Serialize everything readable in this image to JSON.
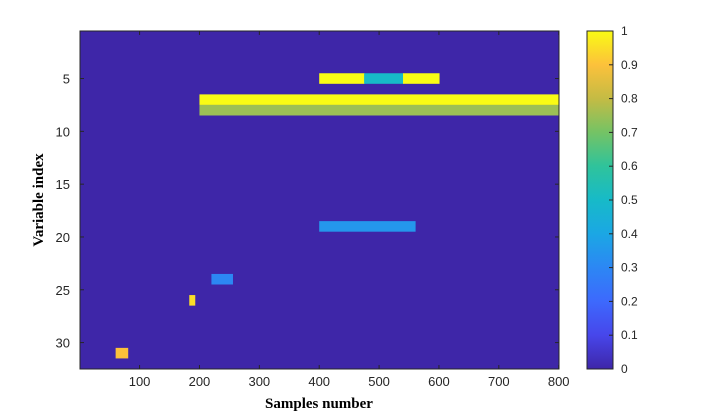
{
  "chart_data": {
    "type": "heatmap",
    "title": "",
    "xlabel": "Samples number",
    "ylabel": "Variable index",
    "xlim": [
      1,
      800
    ],
    "ylim": [
      1,
      32
    ],
    "x_ticks": [
      100,
      200,
      300,
      400,
      500,
      600,
      700,
      800
    ],
    "y_ticks": [
      5,
      10,
      15,
      20,
      25,
      30
    ],
    "y_direction": "reversed",
    "colormap": "parula",
    "color_range": [
      0,
      1
    ],
    "colorbar_ticks": [
      0,
      0.1,
      0.2,
      0.3,
      0.4,
      0.5,
      0.6,
      0.7,
      0.8,
      0.9,
      1
    ],
    "colorbar_tick_labels": [
      "0",
      "0.1",
      "0.2",
      "0.3",
      "0.4",
      "0.5",
      "0.6",
      "0.7",
      "0.8",
      "0.9",
      "1"
    ],
    "background_value": 0,
    "approx_cells": [
      {
        "row": 5,
        "x_from": 400,
        "x_to": 475,
        "value": 1.0
      },
      {
        "row": 5,
        "x_from": 475,
        "x_to": 540,
        "value": 0.5
      },
      {
        "row": 5,
        "x_from": 540,
        "x_to": 600,
        "value": 1.0
      },
      {
        "row": 7,
        "x_from": 200,
        "x_to": 800,
        "value": 1.0
      },
      {
        "row": 8,
        "x_from": 200,
        "x_to": 800,
        "value": 0.75
      },
      {
        "row": 19,
        "x_from": 400,
        "x_to": 560,
        "value": 0.35
      },
      {
        "row": 24,
        "x_from": 220,
        "x_to": 255,
        "value": 0.3
      },
      {
        "row": 26,
        "x_from": 183,
        "x_to": 192,
        "value": 0.95
      },
      {
        "row": 31,
        "x_from": 60,
        "x_to": 80,
        "value": 0.9
      }
    ]
  }
}
